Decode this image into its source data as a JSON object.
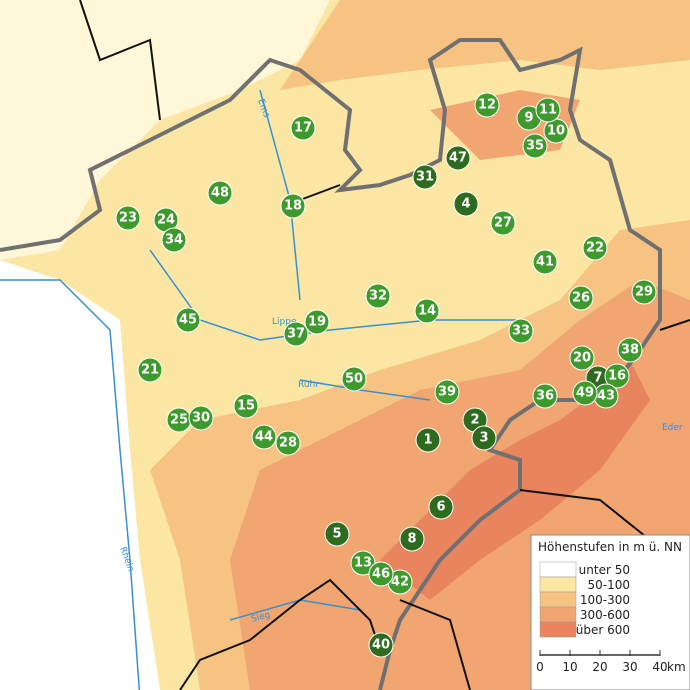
{
  "legend": {
    "title": "Höhenstufen in m ü. NN",
    "items": [
      {
        "label": "unter 50"
      },
      {
        "label": "50-100"
      },
      {
        "label": "100-300"
      },
      {
        "label": "300-600"
      },
      {
        "label": "über 600"
      }
    ]
  },
  "scale": {
    "labels": [
      "0",
      "10",
      "20",
      "30",
      "40"
    ],
    "unit": "km"
  },
  "rivers": [
    {
      "label": "Ems"
    },
    {
      "label": "Lippe"
    },
    {
      "label": "Ruhr"
    },
    {
      "label": "Rhein"
    },
    {
      "label": "Sieg"
    },
    {
      "label": "Eder"
    }
  ],
  "sites": [
    {
      "label": "1"
    },
    {
      "label": "2"
    },
    {
      "label": "3"
    },
    {
      "label": "4"
    },
    {
      "label": "5"
    },
    {
      "label": "6"
    },
    {
      "label": "7"
    },
    {
      "label": "8"
    },
    {
      "label": "9"
    },
    {
      "label": "10"
    },
    {
      "label": "11"
    },
    {
      "label": "12"
    },
    {
      "label": "13"
    },
    {
      "label": "14"
    },
    {
      "label": "15"
    },
    {
      "label": "16"
    },
    {
      "label": "17"
    },
    {
      "label": "18"
    },
    {
      "label": "19"
    },
    {
      "label": "20"
    },
    {
      "label": "21"
    },
    {
      "label": "22"
    },
    {
      "label": "23"
    },
    {
      "label": "24"
    },
    {
      "label": "25"
    },
    {
      "label": "26"
    },
    {
      "label": "27"
    },
    {
      "label": "28"
    },
    {
      "label": "29"
    },
    {
      "label": "30"
    },
    {
      "label": "31"
    },
    {
      "label": "32"
    },
    {
      "label": "33"
    },
    {
      "label": "34"
    },
    {
      "label": "35"
    },
    {
      "label": "36"
    },
    {
      "label": "37"
    },
    {
      "label": "38"
    },
    {
      "label": "39"
    },
    {
      "label": "40"
    },
    {
      "label": "41"
    },
    {
      "label": "42"
    },
    {
      "label": "43"
    },
    {
      "label": "44"
    },
    {
      "label": "45"
    },
    {
      "label": "46"
    },
    {
      "label": "47"
    },
    {
      "label": "48"
    },
    {
      "label": "49"
    },
    {
      "label": "50"
    }
  ]
}
